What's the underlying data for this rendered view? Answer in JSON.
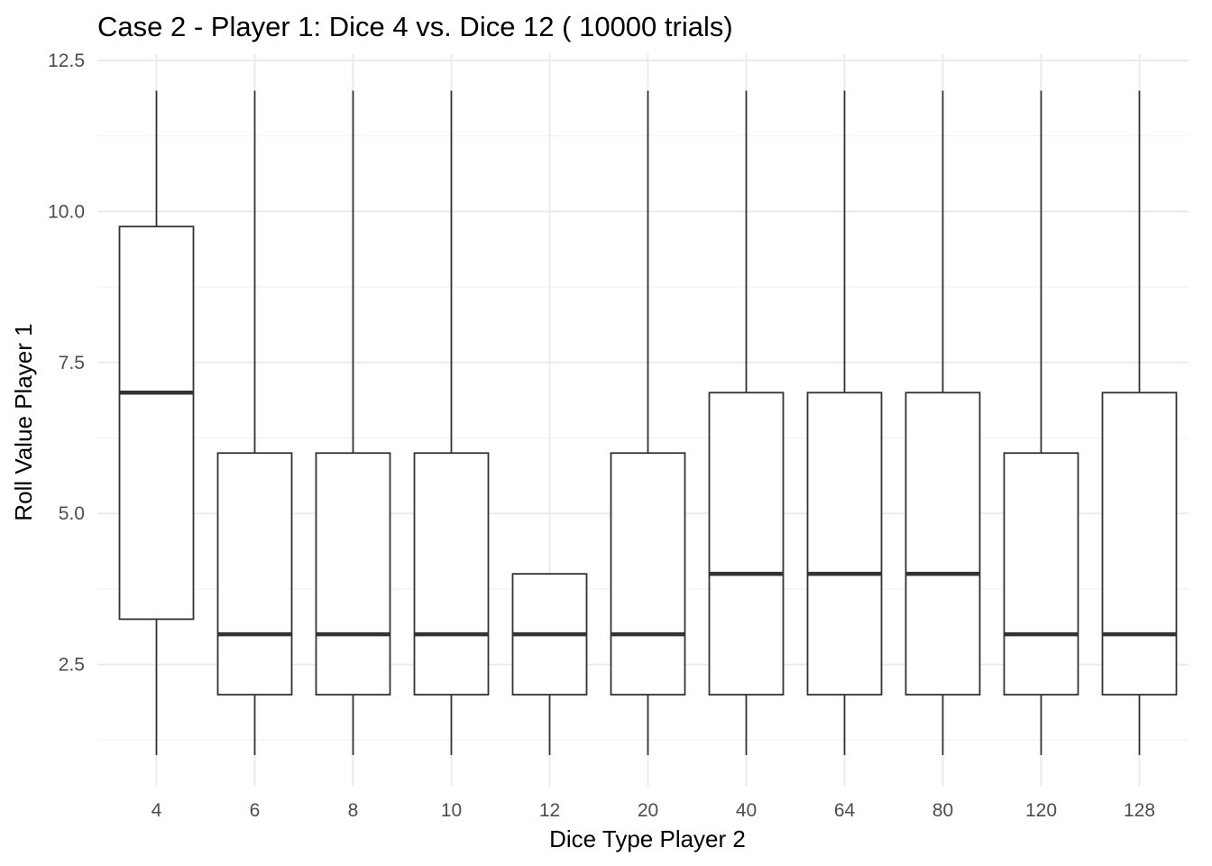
{
  "chart_data": {
    "type": "boxplot",
    "title": "Case 2 - Player 1: Dice 4 vs. Dice 12 ( 10000 trials)",
    "xlabel": "Dice Type Player 2",
    "ylabel": "Roll Value Player 1",
    "categories": [
      "4",
      "6",
      "8",
      "10",
      "12",
      "20",
      "40",
      "64",
      "80",
      "120",
      "128"
    ],
    "boxes": [
      {
        "category": "4",
        "min": 1,
        "q1": 3.25,
        "median": 7,
        "q3": 9.75,
        "max": 12
      },
      {
        "category": "6",
        "min": 1,
        "q1": 2,
        "median": 3,
        "q3": 6,
        "max": 12
      },
      {
        "category": "8",
        "min": 1,
        "q1": 2,
        "median": 3,
        "q3": 6,
        "max": 12
      },
      {
        "category": "10",
        "min": 1,
        "q1": 2,
        "median": 3,
        "q3": 6,
        "max": 12
      },
      {
        "category": "12",
        "min": 1,
        "q1": 2,
        "median": 3,
        "q3": 4,
        "max": 4
      },
      {
        "category": "20",
        "min": 1,
        "q1": 2,
        "median": 3,
        "q3": 6,
        "max": 12
      },
      {
        "category": "40",
        "min": 1,
        "q1": 2,
        "median": 4,
        "q3": 7,
        "max": 12
      },
      {
        "category": "64",
        "min": 1,
        "q1": 2,
        "median": 4,
        "q3": 7,
        "max": 12
      },
      {
        "category": "80",
        "min": 1,
        "q1": 2,
        "median": 4,
        "q3": 7,
        "max": 12
      },
      {
        "category": "120",
        "min": 1,
        "q1": 2,
        "median": 3,
        "q3": 6,
        "max": 12
      },
      {
        "category": "128",
        "min": 1,
        "q1": 2,
        "median": 3,
        "q3": 7,
        "max": 12
      }
    ],
    "ylim": [
      0.65,
      12.5
    ],
    "y_ticks": [
      2.5,
      5.0,
      7.5,
      10.0,
      12.5
    ],
    "y_tick_labels": [
      "2.5",
      "5.0",
      "7.5",
      "10.0",
      "12.5"
    ],
    "grid": true,
    "theme": "minimal",
    "colors": {
      "box_fill": "#ffffff",
      "box_stroke": "#333333",
      "grid_major": "#ebebeb",
      "grid_minor": "#f2f2f2",
      "tick_text": "#4d4d4d",
      "title_text": "#000000"
    }
  }
}
